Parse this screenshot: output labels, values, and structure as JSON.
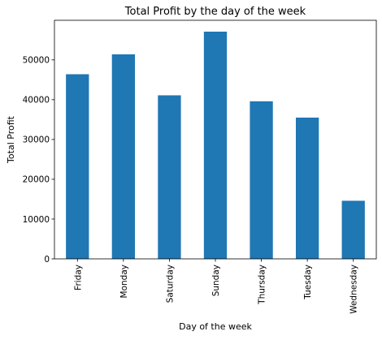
{
  "chart_data": {
    "type": "bar",
    "title": "Total Profit by the day of the week",
    "xlabel": "Day of the week",
    "ylabel": "Total Profit",
    "categories": [
      "Friday",
      "Monday",
      "Saturday",
      "Sunday",
      "Thursday",
      "Tuesday",
      "Wednesday"
    ],
    "values": [
      46400,
      51400,
      41100,
      57100,
      39600,
      35500,
      14600
    ],
    "ylim": [
      0,
      59955
    ],
    "yticks": [
      0,
      10000,
      20000,
      30000,
      40000,
      50000
    ],
    "ytick_labels": [
      "0",
      "10000",
      "20000",
      "30000",
      "40000",
      "50000"
    ],
    "grid": false,
    "legend": "none",
    "bar_color": "#1f77b4"
  }
}
